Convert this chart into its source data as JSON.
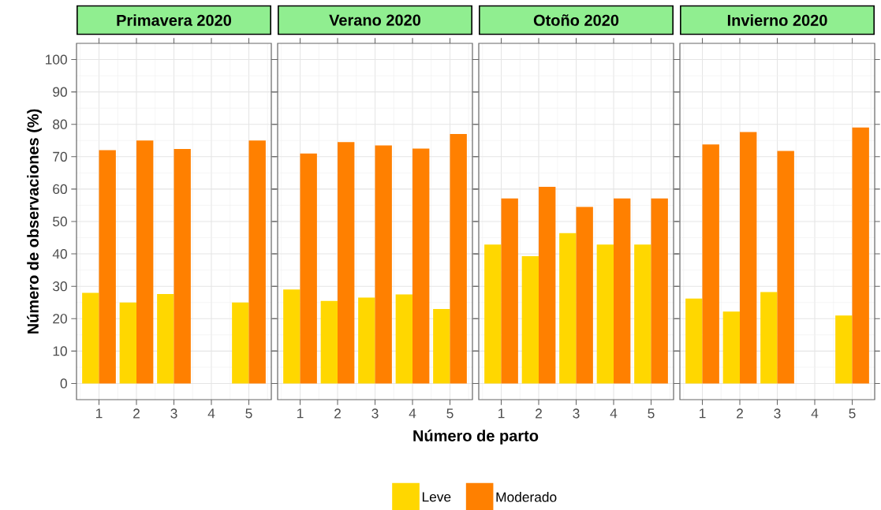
{
  "chart_data": [
    {
      "type": "bar",
      "title": "Primavera 2020",
      "ylabel": "Número de observaciones (%)",
      "categories": [
        "1",
        "2",
        "3",
        "4",
        "5"
      ],
      "series": [
        {
          "color": "#ffd700",
          "values": [
            28,
            25,
            27.6,
            null,
            25
          ]
        },
        {
          "color": "#ff8000",
          "values": [
            72,
            75,
            72.4,
            null,
            75
          ]
        }
      ],
      "ylim": [
        -5,
        105
      ],
      "yticks": [
        0,
        10,
        20,
        30,
        40,
        50,
        60,
        70,
        80,
        90,
        100
      ],
      "grid": true
    },
    {
      "type": "bar",
      "title": "Verano 2020",
      "categories": [
        "1",
        "2",
        "3",
        "4",
        "5"
      ],
      "series": [
        {
          "color": "#ffd700",
          "values": [
            29,
            25.5,
            26.5,
            27.5,
            23
          ]
        },
        {
          "color": "#ff8000",
          "values": [
            71,
            74.5,
            73.5,
            72.5,
            77
          ]
        }
      ],
      "ylim": [
        -5,
        105
      ],
      "yticks": [
        0,
        10,
        20,
        30,
        40,
        50,
        60,
        70,
        80,
        90,
        100
      ],
      "grid": true,
      "tick_labels": "x"
    },
    {
      "type": "bar",
      "title": "Otoño 2020",
      "xlabel": "Número de parto",
      "categories": [
        "1",
        "2",
        "3",
        "4",
        "5"
      ],
      "series": [
        {
          "name": "Leve",
          "color": "#ffd700",
          "values": [
            42.9,
            39.3,
            46.4,
            42.9,
            42.9
          ]
        },
        {
          "name": "Moderado",
          "color": "#ff8000",
          "values": [
            57.1,
            60.7,
            54.5,
            57.1,
            57.1
          ]
        }
      ],
      "ylim": [
        -5,
        105
      ],
      "yticks": [
        0,
        10,
        20,
        30,
        40,
        50,
        60,
        70,
        80,
        90,
        100
      ],
      "grid": true,
      "tick_labels": "x",
      "legend": "bottom"
    },
    {
      "type": "bar",
      "title": "Invierno 2020",
      "categories": [
        "1",
        "2",
        "3",
        "4",
        "5"
      ],
      "series": [
        {
          "color": "#ffd700",
          "values": [
            26.2,
            22.2,
            28.2,
            null,
            21
          ]
        },
        {
          "color": "#ff8000",
          "values": [
            73.8,
            77.6,
            71.8,
            null,
            79
          ]
        }
      ],
      "ylim": [
        -5,
        105
      ],
      "yticks": [
        0,
        10,
        20,
        30,
        40,
        50,
        60,
        70,
        80,
        90,
        100
      ],
      "grid": true,
      "tick_labels": "x"
    }
  ]
}
